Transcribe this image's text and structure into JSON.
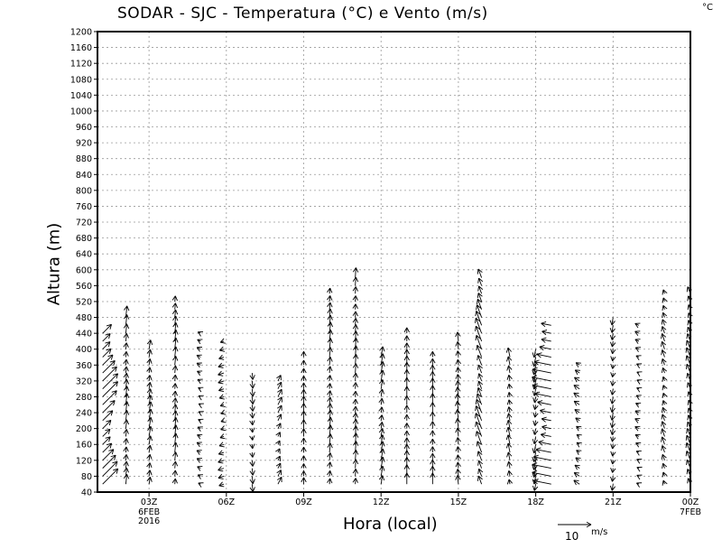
{
  "chart_data": {
    "type": "vector",
    "title": "SODAR - SJC - Temperatura (°C) e Vento (m/s)",
    "unit_label": "°C",
    "xlabel": "Hora (local)",
    "ylabel": "Altura (m)",
    "ylim": [
      40,
      1200
    ],
    "yticks": [
      40,
      80,
      120,
      160,
      200,
      240,
      280,
      320,
      360,
      400,
      440,
      480,
      520,
      560,
      600,
      640,
      680,
      720,
      760,
      800,
      840,
      880,
      920,
      960,
      1000,
      1040,
      1080,
      1120,
      1160,
      1200
    ],
    "xlim_hours": [
      1,
      24
    ],
    "xticks": [
      {
        "hour": 3,
        "label": "03Z",
        "sub": [
          "6FEB",
          "2016"
        ]
      },
      {
        "hour": 6,
        "label": "06Z"
      },
      {
        "hour": 9,
        "label": "09Z"
      },
      {
        "hour": 12,
        "label": "12Z"
      },
      {
        "hour": 15,
        "label": "15Z"
      },
      {
        "hour": 18,
        "label": "18Z"
      },
      {
        "hour": 21,
        "label": "21Z"
      },
      {
        "hour": 24,
        "label": "00Z",
        "sub": [
          "7FEB"
        ]
      }
    ],
    "grid": true,
    "reference_vector": {
      "value": 10,
      "label": "10",
      "unit": "m/s"
    },
    "columns": [
      {
        "hour": 1.2,
        "top": 470,
        "u": 4,
        "v": 4
      },
      {
        "hour": 2.1,
        "top": 500,
        "u": 0.3,
        "v": 3
      },
      {
        "hour": 3.0,
        "top": 420,
        "u": 0.5,
        "v": 3
      },
      {
        "hour": 4.0,
        "top": 540,
        "u": 0.3,
        "v": 3
      },
      {
        "hour": 5.0,
        "top": 460,
        "u": -1,
        "v": 0.5
      },
      {
        "hour": 5.9,
        "top": 440,
        "u": -1.5,
        "v": -0.5
      },
      {
        "hour": 7.0,
        "top": 360,
        "u": 0.2,
        "v": -2
      },
      {
        "hour": 8.0,
        "top": 340,
        "u": 1,
        "v": 2
      },
      {
        "hour": 9.0,
        "top": 400,
        "u": 0,
        "v": 2.5
      },
      {
        "hour": 10.0,
        "top": 570,
        "u": 0.3,
        "v": 3
      },
      {
        "hour": 11.0,
        "top": 610,
        "u": 0.2,
        "v": 3
      },
      {
        "hour": 12.0,
        "top": 400,
        "u": 0.5,
        "v": 3
      },
      {
        "hour": 13.0,
        "top": 470,
        "u": 0,
        "v": 3
      },
      {
        "hour": 14.0,
        "top": 400,
        "u": 0,
        "v": 3
      },
      {
        "hour": 15.0,
        "top": 440,
        "u": -0.3,
        "v": 3
      },
      {
        "hour": 15.9,
        "top": 600,
        "u": -1.5,
        "v": 4
      },
      {
        "hour": 17.0,
        "top": 400,
        "u": -0.5,
        "v": 2.5
      },
      {
        "hour": 18.0,
        "top": 420,
        "u": -0.5,
        "v": -2.5
      },
      {
        "hour": 18.6,
        "top": 480,
        "u": -5,
        "v": 1
      },
      {
        "hour": 19.7,
        "top": 390,
        "u": -1.5,
        "v": 1
      },
      {
        "hour": 21.0,
        "top": 510,
        "u": -0.3,
        "v": -2
      },
      {
        "hour": 22.0,
        "top": 480,
        "u": -1,
        "v": 0.5
      },
      {
        "hour": 23.0,
        "top": 560,
        "u": -0.7,
        "v": 2
      },
      {
        "hour": 24.0,
        "top": 570,
        "u": -1,
        "v": 2.5
      }
    ]
  }
}
